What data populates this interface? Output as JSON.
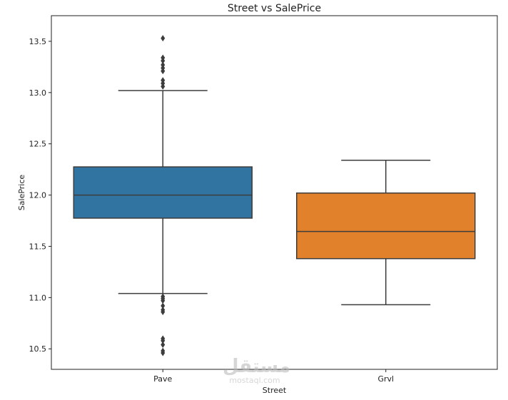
{
  "chart_data": {
    "type": "box",
    "title": "Street vs SalePrice",
    "xlabel": "Street",
    "ylabel": "SalePrice",
    "ylim": [
      10.3,
      13.75
    ],
    "yticks": [
      10.5,
      11.0,
      11.5,
      12.0,
      12.5,
      13.0,
      13.5
    ],
    "ytick_labels": [
      "10.5",
      "11.0",
      "11.5",
      "12.0",
      "12.5",
      "13.0",
      "13.5"
    ],
    "categories": [
      "Pave",
      "Grvl"
    ],
    "series": [
      {
        "category": "Pave",
        "color": "#3274a1",
        "whisker_low": 11.04,
        "q1": 11.775,
        "median": 12.0,
        "q3": 12.275,
        "whisker_high": 13.02,
        "outliers": [
          13.53,
          13.34,
          13.31,
          13.27,
          13.24,
          13.21,
          13.12,
          13.09,
          13.06,
          11.01,
          10.99,
          10.97,
          10.92,
          10.88,
          10.86,
          10.6,
          10.58,
          10.54,
          10.48,
          10.46
        ]
      },
      {
        "category": "Grvl",
        "color": "#e1812c",
        "whisker_low": 10.93,
        "q1": 11.38,
        "median": 11.645,
        "q3": 12.02,
        "whisker_high": 12.34,
        "outliers": []
      }
    ],
    "grid": false,
    "legend": "none"
  },
  "watermark": {
    "arabic": "مستقل",
    "latin": "mostaql.com"
  }
}
